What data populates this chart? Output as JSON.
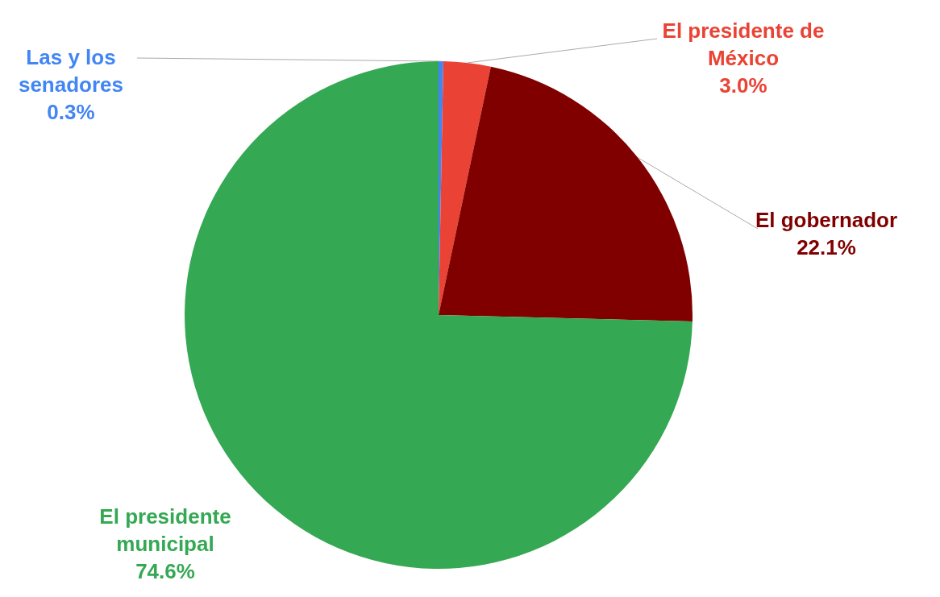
{
  "chart_data": {
    "type": "pie",
    "categories": [
      "Las y los senadores",
      "El presidente de México",
      "El gobernador",
      "El presidente municipal"
    ],
    "values": [
      0.3,
      3.0,
      22.1,
      74.6
    ],
    "colors": [
      "#4285f4",
      "#ea4335",
      "#800000",
      "#34a853"
    ],
    "value_labels": [
      "0.3%",
      "3.0%",
      "22.1%",
      "74.6%"
    ]
  }
}
